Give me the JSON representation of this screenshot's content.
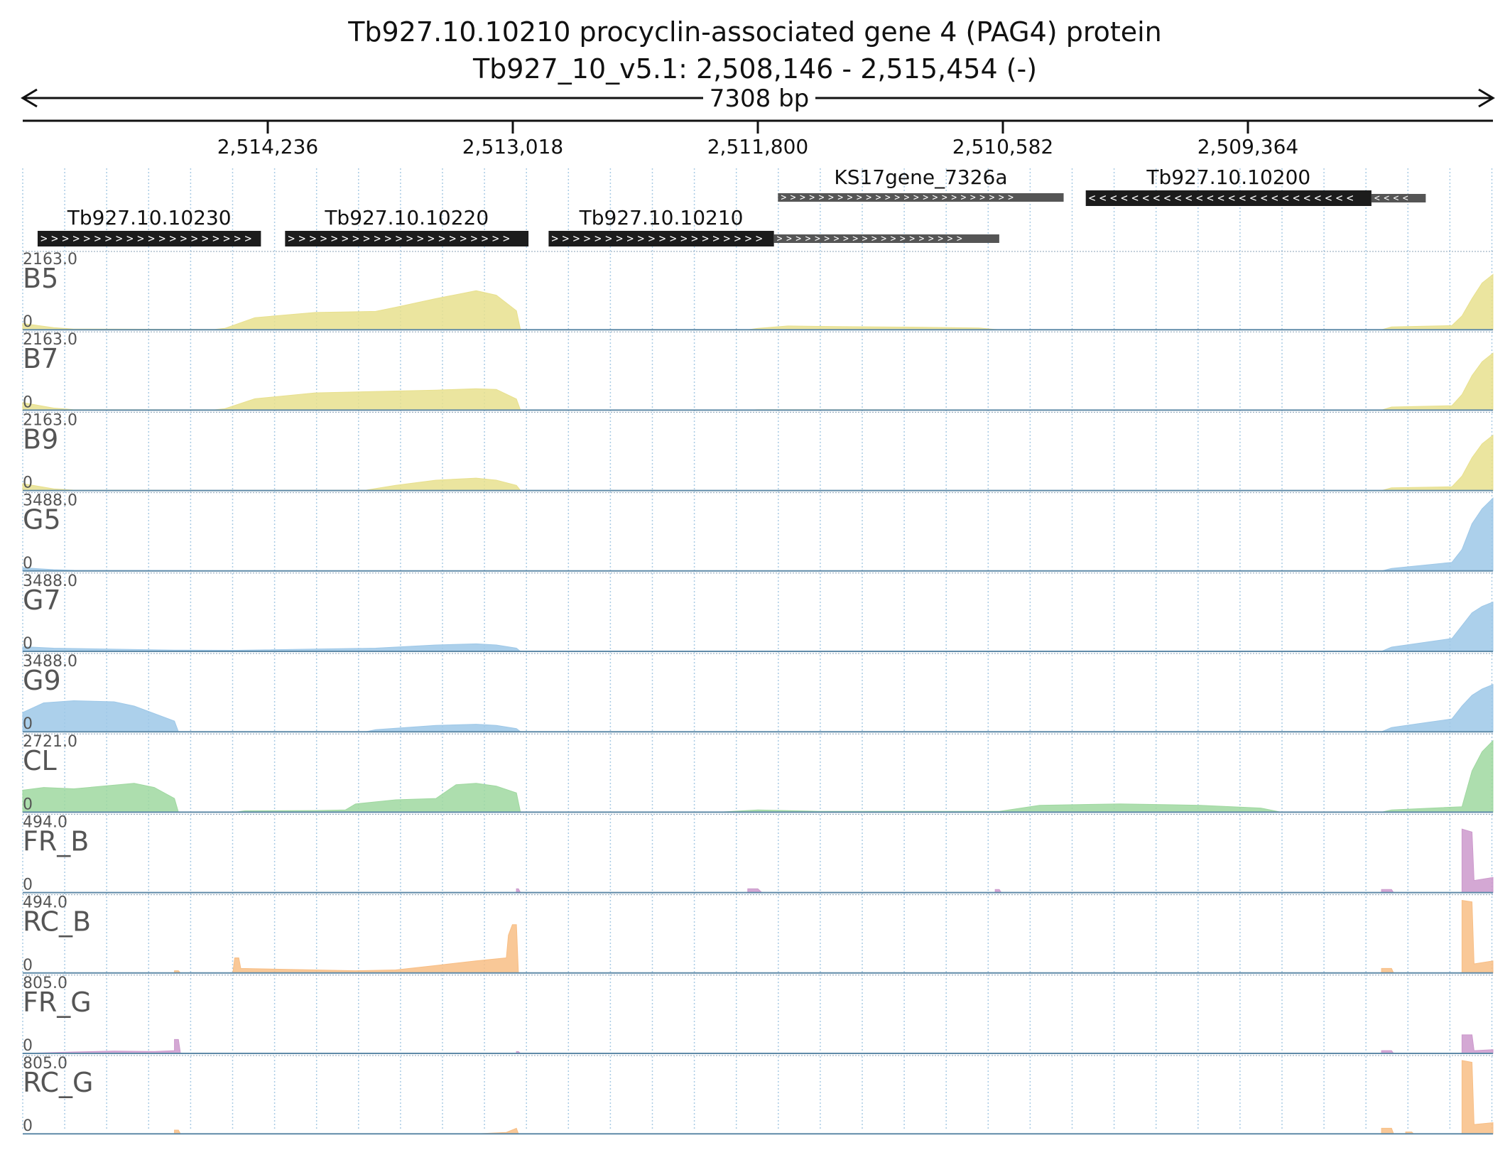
{
  "title": "Tb927.10.10210  procyclin-associated gene 4 (PAG4) protein",
  "subtitle": "Tb927_10_v5.1: 2,508,146 - 2,515,454 (-)",
  "span_label": "7308 bp",
  "colors": {
    "B": "#e8e08e",
    "G": "#9ec8e8",
    "CL": "#9fd8a0",
    "FR": "#cc99cc",
    "RC": "#f8be85",
    "gene": "#1c1c1c",
    "utr": "#555555"
  },
  "chart_data": {
    "type": "area",
    "x_axis": {
      "start": 2515454,
      "end": 2508146,
      "reversed": true,
      "ticks": [
        2514236,
        2513018,
        2511800,
        2510582,
        2509364
      ],
      "tick_labels": [
        "2,514,236",
        "2,513,018",
        "2,511,800",
        "2,510,582",
        "2,509,364"
      ]
    },
    "genes": [
      {
        "name": "Tb927.10.10230",
        "start": 2515380,
        "end": 2514270,
        "strand": "+",
        "type": "cds",
        "show_label": true
      },
      {
        "name": "Tb927.10.10220",
        "start": 2514150,
        "end": 2512940,
        "strand": "+",
        "type": "cds",
        "show_label": true
      },
      {
        "name": "Tb927.10.10210",
        "start": 2512840,
        "end": 2511720,
        "strand": "+",
        "type": "cds",
        "show_label": true
      },
      {
        "name": "",
        "start": 2511720,
        "end": 2510600,
        "strand": "+",
        "type": "utr",
        "show_label": false
      },
      {
        "name": "KS17gene_7326a",
        "start": 2511700,
        "end": 2510280,
        "strand": "+",
        "type": "utr",
        "show_label": true
      },
      {
        "name": "Tb927.10.10200",
        "start": 2510170,
        "end": 2508750,
        "strand": "-",
        "type": "cds",
        "show_label": true
      },
      {
        "name": "",
        "start": 2508750,
        "end": 2508480,
        "strand": "-",
        "type": "utr",
        "show_label": false
      }
    ],
    "tracks": [
      {
        "name": "B5",
        "max": "2163.0",
        "min": "0",
        "color": "B",
        "ymax": 2163,
        "points": [
          [
            2515454,
            180
          ],
          [
            2515300,
            60
          ],
          [
            2515200,
            20
          ],
          [
            2514500,
            10
          ],
          [
            2514450,
            40
          ],
          [
            2514300,
            350
          ],
          [
            2514000,
            500
          ],
          [
            2513700,
            530
          ],
          [
            2513600,
            650
          ],
          [
            2513400,
            900
          ],
          [
            2513200,
            1130
          ],
          [
            2513100,
            1000
          ],
          [
            2513000,
            550
          ],
          [
            2512980,
            0
          ],
          [
            2511850,
            0
          ],
          [
            2511800,
            40
          ],
          [
            2511650,
            110
          ],
          [
            2511400,
            90
          ],
          [
            2511000,
            75
          ],
          [
            2510700,
            50
          ],
          [
            2510600,
            0
          ],
          [
            2508700,
            0
          ],
          [
            2508650,
            80
          ],
          [
            2508350,
            120
          ],
          [
            2508300,
            400
          ],
          [
            2508250,
            900
          ],
          [
            2508200,
            1350
          ],
          [
            2508146,
            1600
          ]
        ]
      },
      {
        "name": "B7",
        "max": "2163.0",
        "min": "0",
        "color": "B",
        "ymax": 2163,
        "points": [
          [
            2515454,
            220
          ],
          [
            2515300,
            60
          ],
          [
            2515200,
            15
          ],
          [
            2514500,
            10
          ],
          [
            2514450,
            40
          ],
          [
            2514300,
            330
          ],
          [
            2514000,
            500
          ],
          [
            2513700,
            540
          ],
          [
            2513400,
            580
          ],
          [
            2513200,
            620
          ],
          [
            2513100,
            600
          ],
          [
            2513000,
            320
          ],
          [
            2512980,
            0
          ],
          [
            2511850,
            0
          ],
          [
            2511800,
            15
          ],
          [
            2510600,
            8
          ],
          [
            2510580,
            0
          ],
          [
            2508700,
            0
          ],
          [
            2508650,
            90
          ],
          [
            2508350,
            130
          ],
          [
            2508300,
            450
          ],
          [
            2508250,
            1000
          ],
          [
            2508200,
            1400
          ],
          [
            2508146,
            1650
          ]
        ]
      },
      {
        "name": "B9",
        "max": "2163.0",
        "min": "0",
        "color": "B",
        "ymax": 2163,
        "points": [
          [
            2515454,
            200
          ],
          [
            2515300,
            50
          ],
          [
            2515200,
            12
          ],
          [
            2514500,
            5
          ],
          [
            2514450,
            5
          ],
          [
            2513750,
            10
          ],
          [
            2513600,
            150
          ],
          [
            2513400,
            300
          ],
          [
            2513200,
            360
          ],
          [
            2513100,
            300
          ],
          [
            2513000,
            150
          ],
          [
            2512980,
            0
          ],
          [
            2511850,
            0
          ],
          [
            2508700,
            0
          ],
          [
            2508650,
            80
          ],
          [
            2508350,
            110
          ],
          [
            2508300,
            420
          ],
          [
            2508250,
            950
          ],
          [
            2508200,
            1350
          ],
          [
            2508146,
            1600
          ]
        ]
      },
      {
        "name": "G5",
        "max": "3488.0",
        "min": "0",
        "color": "G",
        "ymax": 3488,
        "points": [
          [
            2515454,
            150
          ],
          [
            2515300,
            60
          ],
          [
            2515200,
            30
          ],
          [
            2514700,
            20
          ],
          [
            2514600,
            10
          ],
          [
            2512980,
            5
          ],
          [
            2512960,
            0
          ],
          [
            2508700,
            0
          ],
          [
            2508650,
            120
          ],
          [
            2508350,
            400
          ],
          [
            2508300,
            1000
          ],
          [
            2508250,
            2200
          ],
          [
            2508200,
            2900
          ],
          [
            2508146,
            3400
          ]
        ]
      },
      {
        "name": "G7",
        "max": "3488.0",
        "min": "0",
        "color": "G",
        "ymax": 3488,
        "points": [
          [
            2515454,
            220
          ],
          [
            2515300,
            150
          ],
          [
            2514700,
            60
          ],
          [
            2514400,
            50
          ],
          [
            2513700,
            150
          ],
          [
            2513400,
            300
          ],
          [
            2513200,
            350
          ],
          [
            2513100,
            300
          ],
          [
            2513000,
            150
          ],
          [
            2512980,
            0
          ],
          [
            2511850,
            0
          ],
          [
            2508700,
            0
          ],
          [
            2508650,
            200
          ],
          [
            2508350,
            600
          ],
          [
            2508300,
            1200
          ],
          [
            2508250,
            1800
          ],
          [
            2508200,
            2100
          ],
          [
            2508146,
            2300
          ]
        ]
      },
      {
        "name": "G9",
        "max": "3488.0",
        "min": "0",
        "color": "G",
        "ymax": 3488,
        "points": [
          [
            2515454,
            900
          ],
          [
            2515350,
            1350
          ],
          [
            2515200,
            1450
          ],
          [
            2515000,
            1400
          ],
          [
            2514900,
            1200
          ],
          [
            2514700,
            500
          ],
          [
            2514680,
            0
          ],
          [
            2513750,
            0
          ],
          [
            2513700,
            100
          ],
          [
            2513400,
            300
          ],
          [
            2513200,
            350
          ],
          [
            2513100,
            300
          ],
          [
            2513000,
            150
          ],
          [
            2512980,
            0
          ],
          [
            2508700,
            0
          ],
          [
            2508650,
            200
          ],
          [
            2508350,
            600
          ],
          [
            2508300,
            1200
          ],
          [
            2508250,
            1700
          ],
          [
            2508200,
            2000
          ],
          [
            2508146,
            2200
          ]
        ]
      },
      {
        "name": "CL",
        "max": "2721.0",
        "min": "0",
        "color": "CL",
        "ymax": 2721,
        "points": [
          [
            2515454,
            800
          ],
          [
            2515350,
            900
          ],
          [
            2515200,
            850
          ],
          [
            2514900,
            1050
          ],
          [
            2514800,
            900
          ],
          [
            2514700,
            500
          ],
          [
            2514680,
            0
          ],
          [
            2514400,
            0
          ],
          [
            2514350,
            50
          ],
          [
            2514000,
            60
          ],
          [
            2513850,
            80
          ],
          [
            2513800,
            300
          ],
          [
            2513600,
            450
          ],
          [
            2513400,
            500
          ],
          [
            2513300,
            1000
          ],
          [
            2513200,
            1050
          ],
          [
            2513100,
            950
          ],
          [
            2513000,
            700
          ],
          [
            2512980,
            0
          ],
          [
            2512000,
            0
          ],
          [
            2511800,
            80
          ],
          [
            2511500,
            30
          ],
          [
            2510600,
            30
          ],
          [
            2510400,
            250
          ],
          [
            2510000,
            300
          ],
          [
            2509600,
            250
          ],
          [
            2509300,
            150
          ],
          [
            2509200,
            0
          ],
          [
            2508700,
            0
          ],
          [
            2508650,
            80
          ],
          [
            2508300,
            200
          ],
          [
            2508250,
            1500
          ],
          [
            2508200,
            2200
          ],
          [
            2508146,
            2600
          ]
        ]
      },
      {
        "name": "FR_B",
        "max": "494.0",
        "min": "0",
        "color": "FR",
        "ymax": 494,
        "points": [
          [
            2515454,
            0
          ],
          [
            2513000,
            0
          ],
          [
            2513000,
            25
          ],
          [
            2512990,
            25
          ],
          [
            2512980,
            0
          ],
          [
            2511850,
            0
          ],
          [
            2511850,
            25
          ],
          [
            2511800,
            25
          ],
          [
            2511780,
            0
          ],
          [
            2510620,
            0
          ],
          [
            2510620,
            20
          ],
          [
            2510600,
            20
          ],
          [
            2510590,
            0
          ],
          [
            2508700,
            0
          ],
          [
            2508700,
            20
          ],
          [
            2508650,
            20
          ],
          [
            2508640,
            0
          ],
          [
            2508300,
            0
          ],
          [
            2508300,
            420
          ],
          [
            2508250,
            400
          ],
          [
            2508240,
            80
          ],
          [
            2508146,
            100
          ]
        ]
      },
      {
        "name": "RC_B",
        "max": "494.0",
        "min": "0",
        "color": "RC",
        "ymax": 494,
        "points": [
          [
            2515454,
            0
          ],
          [
            2514700,
            0
          ],
          [
            2514700,
            15
          ],
          [
            2514680,
            15
          ],
          [
            2514670,
            0
          ],
          [
            2514410,
            0
          ],
          [
            2514400,
            100
          ],
          [
            2514380,
            100
          ],
          [
            2514370,
            30
          ],
          [
            2514000,
            20
          ],
          [
            2513800,
            15
          ],
          [
            2513600,
            20
          ],
          [
            2513400,
            50
          ],
          [
            2513200,
            80
          ],
          [
            2513050,
            100
          ],
          [
            2513040,
            250
          ],
          [
            2513020,
            320
          ],
          [
            2513000,
            320
          ],
          [
            2512990,
            0
          ],
          [
            2508700,
            0
          ],
          [
            2508700,
            30
          ],
          [
            2508650,
            30
          ],
          [
            2508640,
            0
          ],
          [
            2508300,
            0
          ],
          [
            2508300,
            480
          ],
          [
            2508250,
            470
          ],
          [
            2508240,
            60
          ],
          [
            2508146,
            80
          ]
        ]
      },
      {
        "name": "FR_G",
        "max": "805.0",
        "min": "0",
        "color": "FR",
        "ymax": 805,
        "points": [
          [
            2515454,
            0
          ],
          [
            2515200,
            15
          ],
          [
            2515000,
            25
          ],
          [
            2514800,
            20
          ],
          [
            2514700,
            30
          ],
          [
            2514700,
            150
          ],
          [
            2514680,
            150
          ],
          [
            2514670,
            0
          ],
          [
            2513000,
            0
          ],
          [
            2513000,
            20
          ],
          [
            2512990,
            20
          ],
          [
            2512980,
            0
          ],
          [
            2508700,
            0
          ],
          [
            2508700,
            30
          ],
          [
            2508650,
            30
          ],
          [
            2508640,
            0
          ],
          [
            2508300,
            0
          ],
          [
            2508300,
            200
          ],
          [
            2508250,
            200
          ],
          [
            2508240,
            30
          ],
          [
            2508146,
            40
          ]
        ]
      },
      {
        "name": "RC_G",
        "max": "805.0",
        "min": "0",
        "color": "RC",
        "ymax": 805,
        "points": [
          [
            2515454,
            0
          ],
          [
            2514700,
            0
          ],
          [
            2514700,
            40
          ],
          [
            2514680,
            40
          ],
          [
            2514670,
            0
          ],
          [
            2513200,
            0
          ],
          [
            2513050,
            15
          ],
          [
            2513000,
            60
          ],
          [
            2512990,
            0
          ],
          [
            2508700,
            0
          ],
          [
            2508700,
            60
          ],
          [
            2508650,
            60
          ],
          [
            2508640,
            0
          ],
          [
            2508580,
            0
          ],
          [
            2508580,
            20
          ],
          [
            2508550,
            20
          ],
          [
            2508540,
            0
          ],
          [
            2508300,
            0
          ],
          [
            2508300,
            790
          ],
          [
            2508250,
            770
          ],
          [
            2508240,
            100
          ],
          [
            2508146,
            120
          ]
        ]
      }
    ]
  }
}
